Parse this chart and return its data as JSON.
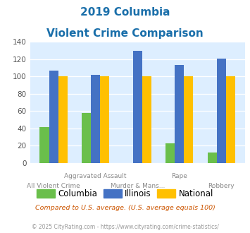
{
  "title_line1": "2019 Columbia",
  "title_line2": "Violent Crime Comparison",
  "categories": [
    "All Violent Crime",
    "Aggravated Assault",
    "Murder & Mans...",
    "Rape",
    "Robbery"
  ],
  "columbia": [
    42,
    58,
    0,
    23,
    12
  ],
  "illinois": [
    107,
    102,
    130,
    113,
    121
  ],
  "national": [
    100,
    100,
    100,
    100,
    100
  ],
  "color_columbia": "#6abf4b",
  "color_illinois": "#4472c4",
  "color_national": "#ffc000",
  "bg_color": "#ddeeff",
  "ylim": [
    0,
    140
  ],
  "yticks": [
    0,
    20,
    40,
    60,
    80,
    100,
    120,
    140
  ],
  "footnote1": "Compared to U.S. average. (U.S. average equals 100)",
  "footnote2": "© 2025 CityRating.com - https://www.cityrating.com/crime-statistics/",
  "title_color": "#1a6faa",
  "footnote1_color": "#cc5500",
  "footnote2_color": "#999999",
  "xlabel_top_row": [
    "",
    "Aggravated Assault",
    "",
    "Rape",
    ""
  ],
  "xlabel_bottom_row": [
    "All Violent Crime",
    "",
    "Murder & Mans...",
    "",
    "Robbery"
  ],
  "legend_labels": [
    "Columbia",
    "Illinois",
    "National"
  ]
}
